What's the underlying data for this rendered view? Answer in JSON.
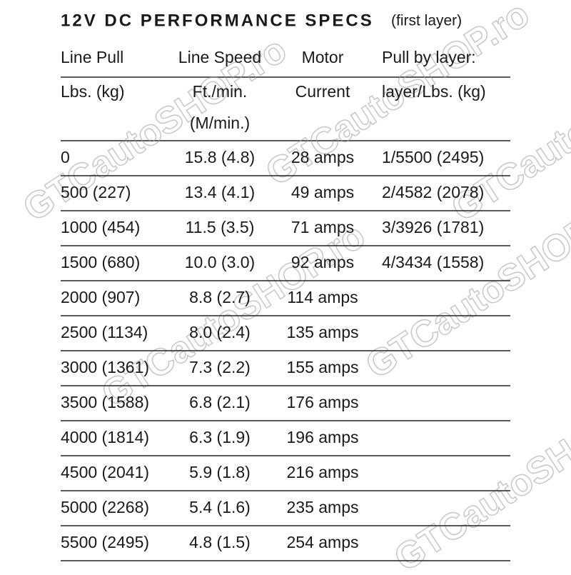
{
  "title": "12V DC PERFORMANCE SPECS",
  "subtitle": "(first layer)",
  "watermark": "GTCautoSHOP.ro",
  "table": {
    "header": [
      [
        "Line Pull",
        "Line Speed",
        "Motor",
        "Pull by layer:"
      ],
      [
        "Lbs. (kg)",
        "Ft./min.",
        "Current",
        "layer/Lbs. (kg)"
      ]
    ],
    "header_extra": "(M/min.)",
    "rows": [
      [
        "0",
        "15.8 (4.8)",
        "28 amps",
        "1/5500 (2495)"
      ],
      [
        "500 (227)",
        "13.4 (4.1)",
        "49 amps",
        "2/4582 (2078)"
      ],
      [
        "1000 (454)",
        "11.5 (3.5)",
        "71 amps",
        "3/3926 (1781)"
      ],
      [
        "1500 (680)",
        "10.0 (3.0)",
        "92 amps",
        "4/3434 (1558)"
      ],
      [
        "2000 (907)",
        "8.8 (2.7)",
        "114 amps"
      ],
      [
        "2500 (1134)",
        "8.0 (2.4)",
        "135 amps"
      ],
      [
        "3000 (1361)",
        "7.3 (2.2)",
        "155 amps"
      ],
      [
        "3500 (1588)",
        "6.8 (2.1)",
        "176 amps"
      ],
      [
        "4000 (1814)",
        "6.3 (1.9)",
        "196 amps"
      ],
      [
        "4500 (2041)",
        "5.9 (1.8)",
        "216 amps"
      ],
      [
        "5000 (2268)",
        "5.4 (1.6)",
        "235 amps"
      ],
      [
        "5500 (2495)",
        "4.8 (1.5)",
        "254 amps"
      ]
    ]
  }
}
